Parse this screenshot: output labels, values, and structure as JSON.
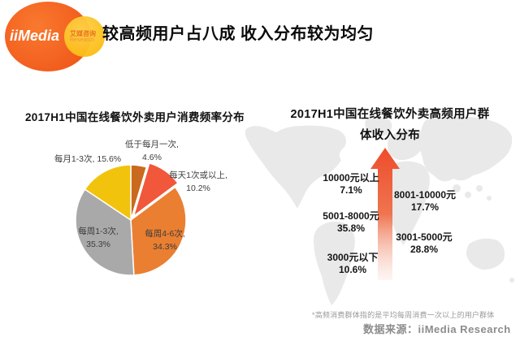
{
  "header": {
    "logo": {
      "brand": "iiMedia",
      "sub_cn": "艾媒咨询",
      "sub_en": "Research"
    },
    "title": "较高频用户占八成 收入分布较为均匀"
  },
  "footer": {
    "footnote": "*高频消费群体指的是平均每周消费一次以上的用户群体",
    "source": "数据来源：iiMedia Research"
  },
  "chart_data": [
    {
      "type": "pie",
      "title": "2017H1中国在线餐饮外卖用户消费频率分布",
      "legend_position": "none",
      "start_angle_deg": 0,
      "direction": "clockwise",
      "slice_border_color": "#ffffff",
      "slices": [
        {
          "label": "低于每月一次",
          "value": 4.6,
          "display_label": "低于每月一次,",
          "display_value": "4.6%",
          "color": "#c96a1e",
          "exploded": false,
          "label_position": "outside"
        },
        {
          "label": "每天1次或以上",
          "value": 10.2,
          "display_label": "每天1次或以上,",
          "display_value": "10.2%",
          "color": "#f1573b",
          "exploded": true,
          "label_position": "outside"
        },
        {
          "label": "每周4-6次",
          "value": 34.3,
          "display_label": "每周4-6次,",
          "display_value": "34.3%",
          "color": "#ea7f31",
          "exploded": false,
          "label_position": "inside"
        },
        {
          "label": "每周1-3次",
          "value": 35.3,
          "display_label": "每周1-3次,",
          "display_value": "35.3%",
          "color": "#a9a9a9",
          "exploded": false,
          "label_position": "inside"
        },
        {
          "label": "每月1-3次",
          "value": 15.6,
          "display_label": "每月1-3次,",
          "display_value": "15.6%",
          "color": "#f2c30d",
          "exploded": false,
          "label_position": "outside"
        }
      ]
    },
    {
      "type": "bar",
      "variant": "ascending-arrow-annotation",
      "title": "2017H1中国在线餐饮外卖高频用户群体收入分布",
      "title_line1": "2017H1中国在线餐饮外卖高频用户群",
      "title_line2": "体收入分布",
      "items": [
        {
          "label": "10000元以上",
          "value": 7.1,
          "display_value": "7.1%",
          "side": "left"
        },
        {
          "label": "8001-10000元",
          "value": 17.7,
          "display_value": "17.7%",
          "side": "right"
        },
        {
          "label": "5001-8000元",
          "value": 35.8,
          "display_value": "35.8%",
          "side": "left"
        },
        {
          "label": "3001-5000元",
          "value": 28.8,
          "display_value": "28.8%",
          "side": "right"
        },
        {
          "label": "3000元以下",
          "value": 10.6,
          "display_value": "10.6%",
          "side": "left"
        }
      ],
      "arrow": {
        "direction": "up",
        "color_top": "#ee4d2b",
        "color_mid": "#ef7450",
        "color_bottom": "#f7cdbf"
      },
      "map_color": "#e9e9e9"
    }
  ]
}
